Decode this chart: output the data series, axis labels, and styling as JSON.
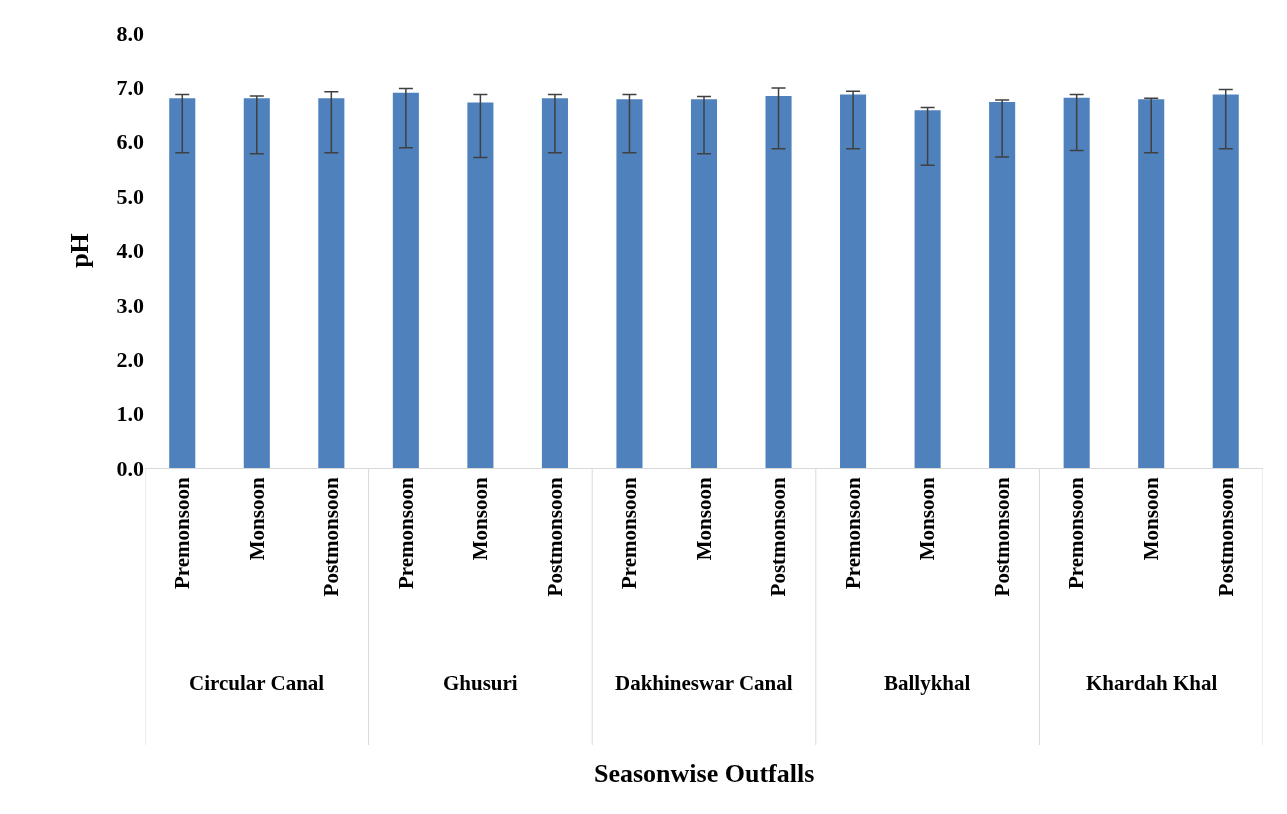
{
  "chart_data": {
    "type": "bar",
    "ylabel": "pH",
    "categories": [
      "Premonsoon",
      "Monsoon",
      "Postmonsoon",
      "Premonsoon",
      "Monsoon",
      "Postmonsoon",
      "Premonsoon",
      "Monsoon",
      "Postmonsoon",
      "Premonsoon",
      "Monsoon",
      "Postmonsoon",
      "Premonsoon",
      "Monsoon",
      "Postmonsoon"
    ],
    "values": [
      6.8,
      6.8,
      6.8,
      6.9,
      6.72,
      6.8,
      6.78,
      6.78,
      6.84,
      6.87,
      6.58,
      6.73,
      6.81,
      6.78,
      6.87
    ],
    "errors": [
      [
        5.8,
        6.87
      ],
      [
        5.78,
        6.84
      ],
      [
        5.8,
        6.92
      ],
      [
        5.89,
        6.98
      ],
      [
        5.71,
        6.87
      ],
      [
        5.8,
        6.87
      ],
      [
        5.8,
        6.87
      ],
      [
        5.78,
        6.83
      ],
      [
        5.87,
        6.99
      ],
      [
        5.87,
        6.93
      ],
      [
        5.57,
        6.63
      ],
      [
        5.72,
        6.77
      ],
      [
        5.84,
        6.87
      ],
      [
        5.8,
        6.8
      ],
      [
        5.87,
        6.96
      ]
    ],
    "color": "#4f81bd",
    "annotations": [
      "Circular Canal",
      "Ghusuri",
      "Dakhineswar Canal",
      "Ballykhal",
      "Khardah Khal",
      "Seasonwise Outfalls"
    ],
    "ylim": [
      0,
      8
    ],
    "yticks": [
      {
        "value": 0,
        "label": "0.0"
      },
      {
        "value": 1,
        "label": "1.0"
      },
      {
        "value": 2,
        "label": "2.0"
      },
      {
        "value": 3,
        "label": "3.0"
      },
      {
        "value": 4,
        "label": "4.0"
      },
      {
        "value": 5,
        "label": "5.0"
      },
      {
        "value": 6,
        "label": "6.0"
      },
      {
        "value": 7,
        "label": "7.0"
      },
      {
        "value": 8,
        "label": "8.0"
      }
    ],
    "legend": false
  }
}
